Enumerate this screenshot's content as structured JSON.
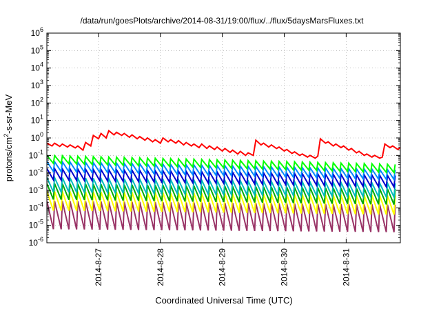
{
  "chart_data": {
    "type": "line",
    "title": "/data/run/goesPlots/archive/2014-08-31/19:00/flux/../flux/5daysMarsFluxes.txt",
    "xlabel": "Coordinated Universal Time (UTC)",
    "ylabel_parts": {
      "pre": "protons/cm",
      "sup": "2",
      "post": "-s-sr-MeV"
    },
    "yscale": "log",
    "ylim": [
      1e-06,
      1000000.0
    ],
    "y_ticks": [
      {
        "base": "10",
        "exp": "-6"
      },
      {
        "base": "10",
        "exp": "-5"
      },
      {
        "base": "10",
        "exp": "-4"
      },
      {
        "base": "10",
        "exp": "-3"
      },
      {
        "base": "10",
        "exp": "-2"
      },
      {
        "base": "10",
        "exp": "-1"
      },
      {
        "base": "10",
        "exp": "0"
      },
      {
        "base": "10",
        "exp": "1"
      },
      {
        "base": "10",
        "exp": "2"
      },
      {
        "base": "10",
        "exp": "3"
      },
      {
        "base": "10",
        "exp": "4"
      },
      {
        "base": "10",
        "exp": "5"
      },
      {
        "base": "10",
        "exp": "6"
      }
    ],
    "xlim": [
      "2014-08-26T04:00",
      "2014-08-31T21:00"
    ],
    "x_ticks": [
      {
        "at": "2014-08-27T00:00",
        "label": "2014-8-27"
      },
      {
        "at": "2014-08-28T00:00",
        "label": "2014-8-28"
      },
      {
        "at": "2014-08-29T00:00",
        "label": "2014-8-29"
      },
      {
        "at": "2014-08-30T00:00",
        "label": "2014-8-30"
      },
      {
        "at": "2014-08-31T00:00",
        "label": "2014-8-31"
      }
    ],
    "grid": true,
    "legend": "none",
    "series": [
      {
        "color": "#ff0000",
        "values": [
          [
            "2014-08-26T04:00",
            0.5
          ],
          [
            "2014-08-26T06:00",
            0.35
          ],
          [
            "2014-08-26T07:00",
            0.5
          ],
          [
            "2014-08-26T09:00",
            0.33
          ],
          [
            "2014-08-26T10:00",
            0.45
          ],
          [
            "2014-08-26T12:00",
            0.3
          ],
          [
            "2014-08-26T13:00",
            0.4
          ],
          [
            "2014-08-26T15:00",
            0.27
          ],
          [
            "2014-08-26T16:00",
            0.35
          ],
          [
            "2014-08-26T18:00",
            0.2
          ],
          [
            "2014-08-26T19:00",
            0.55
          ],
          [
            "2014-08-26T21:00",
            0.35
          ],
          [
            "2014-08-26T22:00",
            1.4
          ],
          [
            "2014-08-27T00:00",
            0.9
          ],
          [
            "2014-08-27T01:00",
            1.8
          ],
          [
            "2014-08-27T03:00",
            1.0
          ],
          [
            "2014-08-27T04:00",
            2.6
          ],
          [
            "2014-08-27T06:00",
            1.5
          ],
          [
            "2014-08-27T07:00",
            2.1
          ],
          [
            "2014-08-27T09:00",
            1.4
          ],
          [
            "2014-08-27T10:00",
            1.8
          ],
          [
            "2014-08-27T12:00",
            1.1
          ],
          [
            "2014-08-27T13:00",
            1.5
          ],
          [
            "2014-08-27T15:00",
            0.9
          ],
          [
            "2014-08-27T16:00",
            1.2
          ],
          [
            "2014-08-27T18:00",
            0.75
          ],
          [
            "2014-08-27T19:00",
            1.0
          ],
          [
            "2014-08-27T21:00",
            0.6
          ],
          [
            "2014-08-27T22:00",
            0.8
          ],
          [
            "2014-08-28T00:00",
            0.5
          ],
          [
            "2014-08-28T01:00",
            1.0
          ],
          [
            "2014-08-28T03:00",
            0.6
          ],
          [
            "2014-08-28T04:00",
            0.8
          ],
          [
            "2014-08-28T06:00",
            0.5
          ],
          [
            "2014-08-28T07:00",
            0.7
          ],
          [
            "2014-08-28T09:00",
            0.4
          ],
          [
            "2014-08-28T10:00",
            0.55
          ],
          [
            "2014-08-28T12:00",
            0.35
          ],
          [
            "2014-08-28T13:00",
            0.45
          ],
          [
            "2014-08-28T15:00",
            0.28
          ],
          [
            "2014-08-28T16:00",
            0.45
          ],
          [
            "2014-08-28T18:00",
            0.25
          ],
          [
            "2014-08-28T19:00",
            0.35
          ],
          [
            "2014-08-28T21:00",
            0.22
          ],
          [
            "2014-08-28T22:00",
            0.3
          ],
          [
            "2014-08-29T00:00",
            0.18
          ],
          [
            "2014-08-29T01:00",
            0.25
          ],
          [
            "2014-08-29T03:00",
            0.15
          ],
          [
            "2014-08-29T04:00",
            0.2
          ],
          [
            "2014-08-29T06:00",
            0.12
          ],
          [
            "2014-08-29T07:00",
            0.17
          ],
          [
            "2014-08-29T09:00",
            0.1
          ],
          [
            "2014-08-29T10:00",
            0.14
          ],
          [
            "2014-08-29T12:00",
            0.1
          ],
          [
            "2014-08-29T13:00",
            0.75
          ],
          [
            "2014-08-29T15:00",
            0.4
          ],
          [
            "2014-08-29T16:00",
            0.5
          ],
          [
            "2014-08-29T18:00",
            0.3
          ],
          [
            "2014-08-29T19:00",
            0.4
          ],
          [
            "2014-08-29T21:00",
            0.25
          ],
          [
            "2014-08-29T22:00",
            0.3
          ],
          [
            "2014-08-30T00:00",
            0.18
          ],
          [
            "2014-08-30T01:00",
            0.22
          ],
          [
            "2014-08-30T03:00",
            0.13
          ],
          [
            "2014-08-30T04:00",
            0.16
          ],
          [
            "2014-08-30T06:00",
            0.1
          ],
          [
            "2014-08-30T07:00",
            0.12
          ],
          [
            "2014-08-30T09:00",
            0.08
          ],
          [
            "2014-08-30T10:00",
            0.1
          ],
          [
            "2014-08-30T12:00",
            0.07
          ],
          [
            "2014-08-30T13:00",
            0.09
          ],
          [
            "2014-08-30T14:00",
            0.9
          ],
          [
            "2014-08-30T16:00",
            0.5
          ],
          [
            "2014-08-30T17:00",
            0.6
          ],
          [
            "2014-08-30T19:00",
            0.35
          ],
          [
            "2014-08-30T20:00",
            0.45
          ],
          [
            "2014-08-30T22:00",
            0.28
          ],
          [
            "2014-08-30T23:00",
            0.35
          ],
          [
            "2014-08-31T01:00",
            0.2
          ],
          [
            "2014-08-31T02:00",
            0.25
          ],
          [
            "2014-08-31T04:00",
            0.14
          ],
          [
            "2014-08-31T05:00",
            0.17
          ],
          [
            "2014-08-31T07:00",
            0.1
          ],
          [
            "2014-08-31T08:00",
            0.12
          ],
          [
            "2014-08-31T10:00",
            0.08
          ],
          [
            "2014-08-31T11:00",
            0.1
          ],
          [
            "2014-08-31T13:00",
            0.07
          ],
          [
            "2014-08-31T14:00",
            0.08
          ],
          [
            "2014-08-31T15:00",
            0.45
          ],
          [
            "2014-08-31T17:00",
            0.28
          ],
          [
            "2014-08-31T18:00",
            0.35
          ],
          [
            "2014-08-31T20:00",
            0.22
          ],
          [
            "2014-08-31T21:00",
            0.28
          ]
        ]
      },
      {
        "color": "#00ff00",
        "sawtooth": {
          "top": 0.1,
          "bottom": 0.035,
          "top_end": 0.03,
          "bottom_end": 0.01
        }
      },
      {
        "color": "#0088ff",
        "sawtooth": {
          "top": 0.045,
          "bottom": 0.012,
          "top_end": 0.015,
          "bottom_end": 0.004
        }
      },
      {
        "color": "#0000cc",
        "sawtooth": {
          "top": 0.018,
          "bottom": 0.004,
          "top_end": 0.007,
          "bottom_end": 0.0015
        }
      },
      {
        "color": "#00bbbb",
        "sawtooth": {
          "top": 0.0055,
          "bottom": 0.0008,
          "top_end": 0.0025,
          "bottom_end": 0.0004
        }
      },
      {
        "color": "#00aa00",
        "sawtooth": {
          "top": 0.0025,
          "bottom": 0.0003,
          "top_end": 0.0012,
          "bottom_end": 0.00015
        }
      },
      {
        "color": "#ffff00",
        "sawtooth": {
          "top": 0.0009,
          "bottom": 7e-05,
          "top_end": 0.0005,
          "bottom_end": 4e-05
        }
      },
      {
        "color": "#993366",
        "sawtooth": {
          "top": 0.00025,
          "bottom": 6e-06,
          "top_end": 0.00015,
          "bottom_end": 4e-06
        }
      }
    ],
    "sawtooth_period_hours": 3
  }
}
